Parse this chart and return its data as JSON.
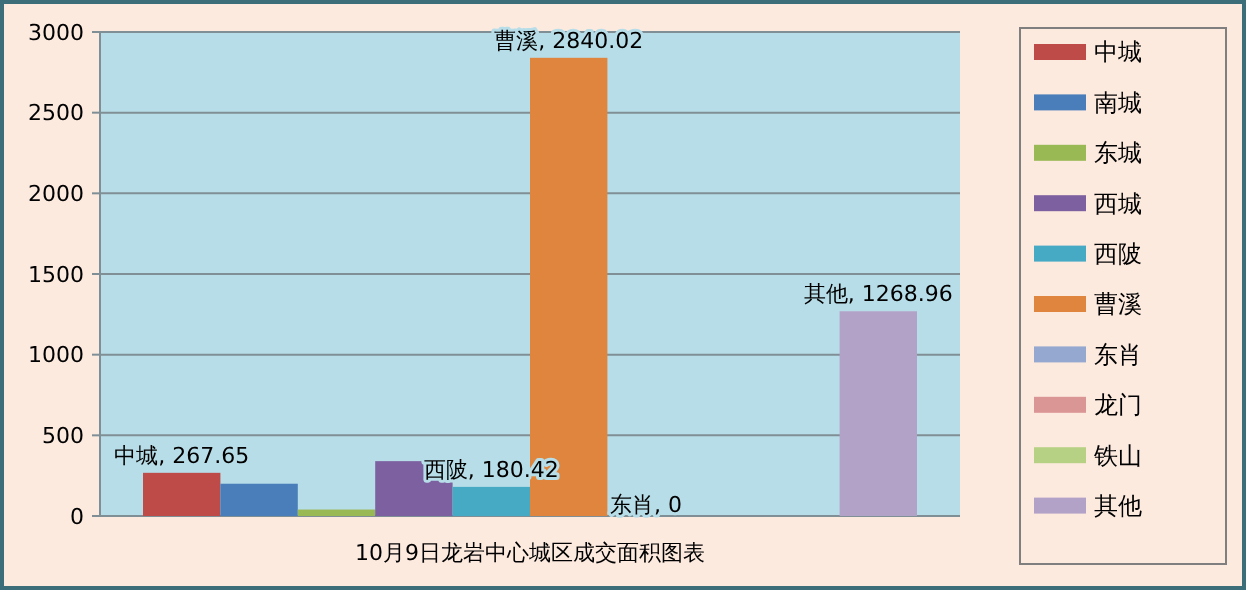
{
  "chart_data": {
    "type": "bar",
    "categories": [
      "10月9日龙岩中心城区成交面积图表"
    ],
    "series": [
      {
        "name": "中城",
        "color": "#be4b48",
        "values": [
          267.65
        ],
        "value_labels": [
          "中城, 267.65"
        ]
      },
      {
        "name": "南城",
        "color": "#4a7ebb",
        "values": [
          200
        ]
      },
      {
        "name": "东城",
        "color": "#98b954",
        "values": [
          40
        ]
      },
      {
        "name": "西城",
        "color": "#7d60a0",
        "values": [
          340
        ]
      },
      {
        "name": "西陂",
        "color": "#46aac5",
        "values": [
          180.42
        ],
        "value_labels": [
          "西陂, 180.42"
        ]
      },
      {
        "name": "曹溪",
        "color": "#e0853d",
        "values": [
          2840.02
        ],
        "value_labels": [
          "曹溪, 2840.02"
        ]
      },
      {
        "name": "东肖",
        "color": "#95a9d0",
        "values": [
          0
        ],
        "value_labels": [
          "东肖, 0"
        ]
      },
      {
        "name": "龙门",
        "color": "#da9694",
        "values": [
          0
        ]
      },
      {
        "name": "铁山",
        "color": "#b7d184",
        "values": [
          0
        ]
      },
      {
        "name": "其他",
        "color": "#b3a2c7",
        "values": [
          1268.96
        ],
        "value_labels": [
          "其他, 1268.96"
        ]
      }
    ],
    "ylim": [
      0,
      3000
    ],
    "yticks": [
      0,
      500,
      1000,
      1500,
      2000,
      2500,
      3000
    ],
    "grid": "y",
    "legend": "right"
  }
}
